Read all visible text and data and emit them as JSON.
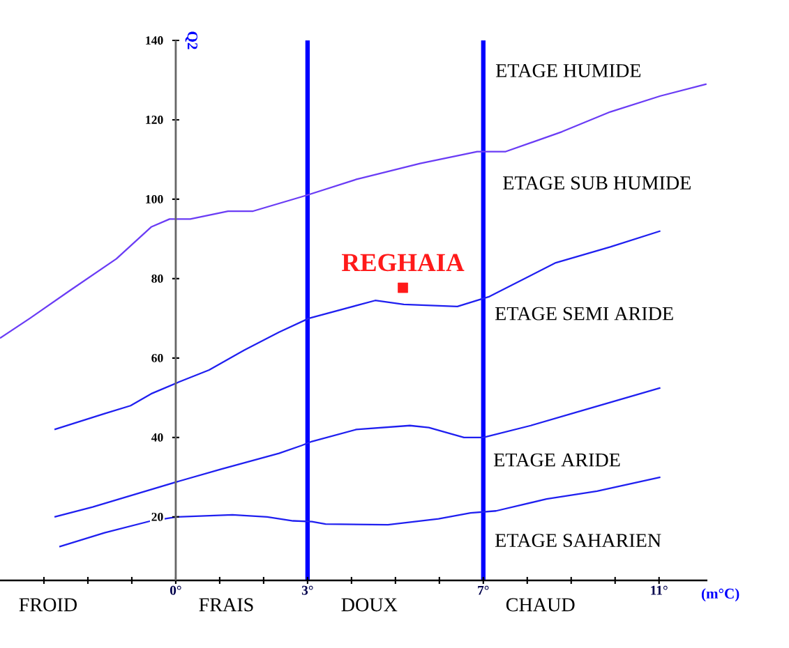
{
  "chart_data": {
    "type": "line",
    "xlabel": "(m°C)",
    "ylabel": "Q2",
    "xlim": [
      -4,
      12.1
    ],
    "ylim": [
      4,
      140
    ],
    "xticks": [
      {
        "value": -3,
        "label": null
      },
      {
        "value": -2,
        "label": null
      },
      {
        "value": -1,
        "label": null
      },
      {
        "value": 0,
        "label": "0°"
      },
      {
        "value": 1,
        "label": null
      },
      {
        "value": 2,
        "label": null
      },
      {
        "value": 3,
        "label": "3°"
      },
      {
        "value": 4,
        "label": null
      },
      {
        "value": 5,
        "label": null
      },
      {
        "value": 6,
        "label": null
      },
      {
        "value": 7,
        "label": "7°"
      },
      {
        "value": 8,
        "label": null
      },
      {
        "value": 9,
        "label": null
      },
      {
        "value": 10,
        "label": null
      },
      {
        "value": 11,
        "label": "11°"
      }
    ],
    "yticks": [
      20,
      40,
      60,
      80,
      100,
      120,
      140
    ],
    "series": [
      {
        "color": "#6a3cf5",
        "x": [
          -4.0,
          -3.32,
          -2.41,
          -1.35,
          -0.56,
          -0.14,
          0.33,
          1.19,
          1.76,
          2.98,
          4.11,
          5.56,
          6.86,
          7.29,
          7.51,
          8.79,
          9.89,
          11.03,
          12.08
        ],
        "values": [
          65,
          70,
          77,
          85,
          93,
          95,
          95,
          97,
          97,
          101,
          105,
          109,
          112,
          112,
          112,
          117,
          122,
          126,
          129
        ]
      },
      {
        "color": "#1f1ff0",
        "x": [
          -2.76,
          -1.62,
          -1.03,
          -0.56,
          0.08,
          0.76,
          1.56,
          2.35,
          3.03,
          4.54,
          5.19,
          6.41,
          7.14,
          8.65,
          9.89,
          11.03
        ],
        "values": [
          42,
          46,
          48,
          51,
          54,
          57,
          62,
          66.5,
          70,
          74.5,
          73.5,
          73,
          75.5,
          84,
          88,
          92
        ]
      },
      {
        "color": "#1f1ff0",
        "x": [
          -2.76,
          -1.89,
          -0.83,
          0.08,
          1.03,
          2.35,
          2.87,
          3.1,
          4.11,
          5.33,
          5.76,
          6.56,
          7.0,
          8.08,
          9.16,
          11.03
        ],
        "values": [
          20,
          22.5,
          26,
          29,
          32,
          36,
          38,
          39,
          42,
          43,
          42.5,
          40,
          40,
          43,
          46.5,
          52.5
        ]
      },
      {
        "color": "#1f1ff0",
        "x": [
          -2.65,
          -1.62,
          -0.56,
          0.02,
          1.29,
          2.08,
          2.67,
          3.1,
          3.41,
          4.83,
          5.98,
          6.71,
          7.29,
          8.44,
          9.59,
          11.03
        ],
        "values": [
          12.5,
          16,
          19,
          20,
          20.5,
          20,
          19,
          18.8,
          18.2,
          18,
          19.5,
          21,
          21.5,
          24.5,
          26.5,
          30
        ]
      },
      {
        "type": "scatter",
        "name": "REGHAIA",
        "color": "#ff1a1a",
        "marker": "square",
        "x": [
          5.17
        ],
        "values": [
          77.7
        ]
      }
    ],
    "ref_lines": [
      {
        "axis": "x",
        "value": 3,
        "color": "#0000ff"
      },
      {
        "axis": "x",
        "value": 7,
        "color": "#0000ff"
      }
    ],
    "annotations": [
      "ETAGE HUMIDE",
      "ETAGE SUB HUMIDE",
      "ETAGE SEMI ARIDE",
      "ETAGE ARIDE",
      "ETAGE SAHARIEN",
      "FROID",
      "FRAIS",
      "DOUX",
      "CHAUD"
    ]
  }
}
